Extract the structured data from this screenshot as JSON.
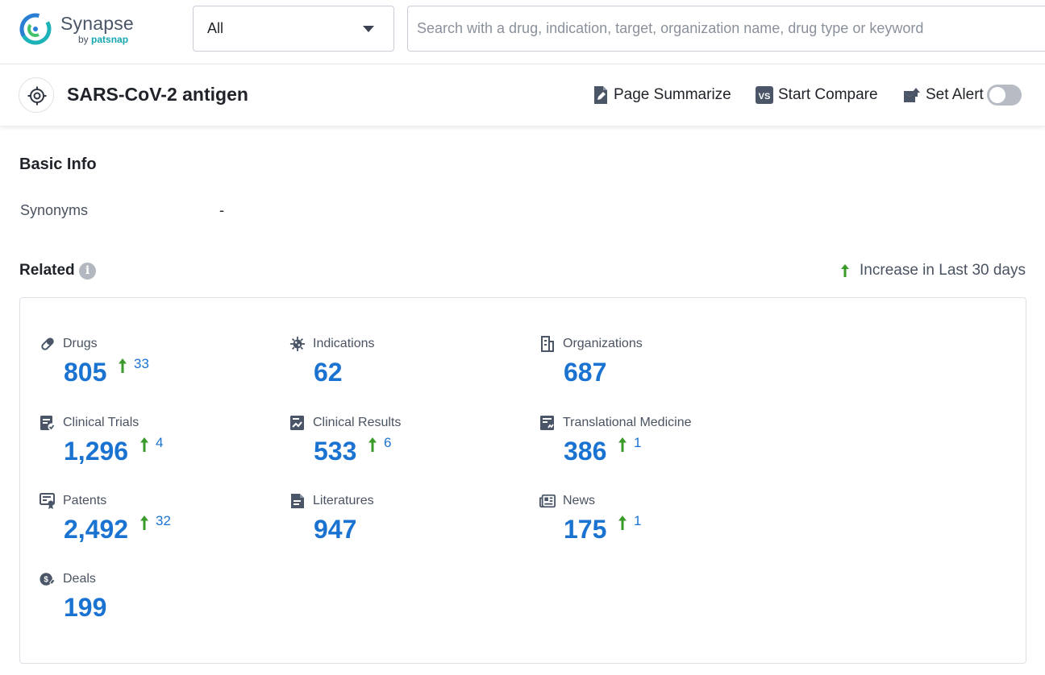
{
  "brand": {
    "name": "Synapse",
    "by_prefix": "by",
    "by_brand": "patsnap"
  },
  "search": {
    "scope_value": "All",
    "placeholder": "Search with a drug, indication, target, organization name, drug type or keyword",
    "value": ""
  },
  "header": {
    "title": "SARS-CoV-2 antigen",
    "actions": {
      "summarize": "Page Summarize",
      "compare": "Start Compare",
      "alert": "Set Alert"
    },
    "alert_enabled": false
  },
  "basic_info": {
    "title": "Basic Info",
    "synonyms_label": "Synonyms",
    "synonyms_value": "-"
  },
  "related": {
    "title": "Related",
    "info_glyph": "i",
    "legend_text": "Increase in Last 30 days",
    "stats": [
      {
        "key": "drugs",
        "label": "Drugs",
        "value": "805",
        "increase": "33",
        "icon": "pill-icon"
      },
      {
        "key": "indications",
        "label": "Indications",
        "value": "62",
        "increase": null,
        "icon": "virus-icon"
      },
      {
        "key": "organizations",
        "label": "Organizations",
        "value": "687",
        "increase": null,
        "icon": "building-icon"
      },
      {
        "key": "clinical_trials",
        "label": "Clinical Trials",
        "value": "1,296",
        "increase": "4",
        "icon": "clipboard-icon"
      },
      {
        "key": "clinical_results",
        "label": "Clinical Results",
        "value": "533",
        "increase": "6",
        "icon": "chart-doc-icon"
      },
      {
        "key": "translational_medicine",
        "label": "Translational Medicine",
        "value": "386",
        "increase": "1",
        "icon": "report-icon"
      },
      {
        "key": "patents",
        "label": "Patents",
        "value": "2,492",
        "increase": "32",
        "icon": "certificate-icon"
      },
      {
        "key": "literatures",
        "label": "Literatures",
        "value": "947",
        "increase": null,
        "icon": "document-icon"
      },
      {
        "key": "news",
        "label": "News",
        "value": "175",
        "increase": "1",
        "icon": "newspaper-icon"
      },
      {
        "key": "deals",
        "label": "Deals",
        "value": "199",
        "increase": null,
        "icon": "handshake-icon"
      }
    ]
  },
  "colors": {
    "accent_blue": "#1b73d1",
    "increase_green": "#3a9a2a",
    "icon_gray": "#4a5667",
    "brand_teal": "#16a6b0"
  }
}
